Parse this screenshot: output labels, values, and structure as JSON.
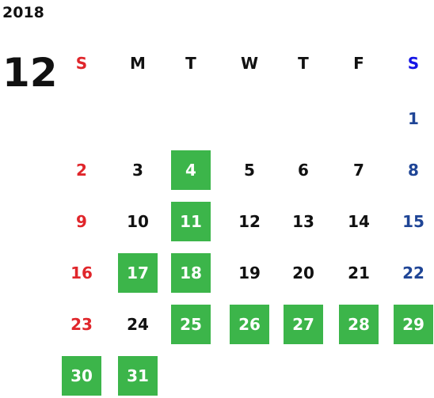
{
  "calendar": {
    "year": "2018",
    "month": "12",
    "weekdays": [
      "S",
      "M",
      "T",
      "W",
      "T",
      "F",
      "S"
    ],
    "sunday_color": "#e0262b",
    "saturday_color": "#1f4596",
    "saturday_header_color": "#1515e6",
    "weekday_color": "#111111",
    "highlight_color": "#3cb54a",
    "highlight_text_color": "#ffffff",
    "weeks": [
      [
        null,
        null,
        null,
        null,
        null,
        null,
        {
          "label": "1",
          "highlight": false
        }
      ],
      [
        {
          "label": "2",
          "highlight": false
        },
        {
          "label": "3",
          "highlight": false
        },
        {
          "label": "4",
          "highlight": true
        },
        {
          "label": "5",
          "highlight": false
        },
        {
          "label": "6",
          "highlight": false
        },
        {
          "label": "7",
          "highlight": false
        },
        {
          "label": "8",
          "highlight": false
        }
      ],
      [
        {
          "label": "9",
          "highlight": false
        },
        {
          "label": "10",
          "highlight": false
        },
        {
          "label": "11",
          "highlight": true
        },
        {
          "label": "12",
          "highlight": false
        },
        {
          "label": "13",
          "highlight": false
        },
        {
          "label": "14",
          "highlight": false
        },
        {
          "label": "15",
          "highlight": false
        }
      ],
      [
        {
          "label": "16",
          "highlight": false
        },
        {
          "label": "17",
          "highlight": true
        },
        {
          "label": "18",
          "highlight": true
        },
        {
          "label": "19",
          "highlight": false
        },
        {
          "label": "20",
          "highlight": false
        },
        {
          "label": "21",
          "highlight": false
        },
        {
          "label": "22",
          "highlight": false
        }
      ],
      [
        {
          "label": "23",
          "highlight": false
        },
        {
          "label": "24",
          "highlight": false
        },
        {
          "label": "25",
          "highlight": true
        },
        {
          "label": "26",
          "highlight": true
        },
        {
          "label": "27",
          "highlight": true
        },
        {
          "label": "28",
          "highlight": true
        },
        {
          "label": "29",
          "highlight": true
        }
      ],
      [
        {
          "label": "30",
          "highlight": true
        },
        {
          "label": "31",
          "highlight": true
        },
        null,
        null,
        null,
        null,
        null
      ]
    ]
  }
}
